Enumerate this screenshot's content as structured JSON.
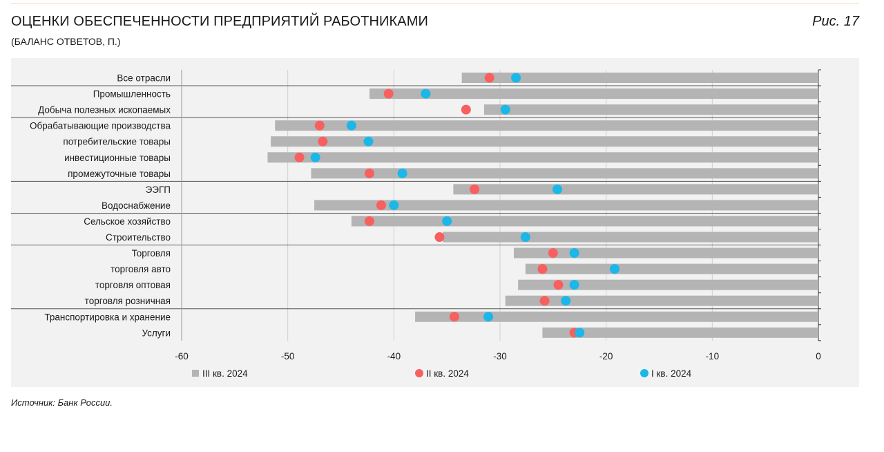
{
  "header": {
    "title": "ОЦЕНКИ ОБЕСПЕЧЕННОСТИ ПРЕДПРИЯТИЙ РАБОТНИКАМИ",
    "subtitle": "(БАЛАНС ОТВЕТОВ, П.)",
    "figure_label": "Рис. 17"
  },
  "footer": {
    "source": "Источник: Банк России."
  },
  "colors": {
    "q3": "#b4b4b4",
    "q2": "#f7605e",
    "q1": "#1bb7e8"
  },
  "chart_data": {
    "type": "bar",
    "orientation": "horizontal",
    "title": "ОЦЕНКИ ОБЕСПЕЧЕННОСТИ ПРЕДПРИЯТИЙ РАБОТНИКАМИ",
    "ylabel": "",
    "xlabel": "",
    "xlim": [
      -60,
      0
    ],
    "xticks": [
      -60,
      -50,
      -40,
      -30,
      -20,
      -10,
      0
    ],
    "categories": [
      "Все отрасли",
      "Промышленность",
      "Добыча полезных ископаемых",
      "Обрабатывающие производства",
      "потребительские товары",
      "инвестиционные товары",
      "промежуточные товары",
      "ЭЭГП",
      "Водоснабжение",
      "Сельское хозяйство",
      "Строительство",
      "Торговля",
      "торговля авто",
      "торговля оптовая",
      "торговля розничная",
      "Транспортировка и хранение",
      "Услуги"
    ],
    "group_separators_after": [
      0,
      2,
      6,
      8,
      10,
      14
    ],
    "series": [
      {
        "name": "III кв. 2024",
        "mark": "bar",
        "color_key": "q3",
        "values": [
          -33.6,
          -42.3,
          -31.5,
          -51.2,
          -51.6,
          -51.9,
          -47.8,
          -34.4,
          -47.5,
          -44,
          -35.4,
          -28.7,
          -27.6,
          -28.3,
          -29.5,
          -38,
          -26
        ]
      },
      {
        "name": "II кв. 2024",
        "mark": "dot",
        "color_key": "q2",
        "values": [
          -31,
          -40.5,
          -33.2,
          -47,
          -46.7,
          -48.9,
          -42.3,
          -32.4,
          -41.2,
          -42.3,
          -35.7,
          -25,
          -26,
          -24.5,
          -25.8,
          -34.3,
          -23
        ]
      },
      {
        "name": "I кв. 2024",
        "mark": "dot",
        "color_key": "q1",
        "values": [
          -28.5,
          -37,
          -29.5,
          -44,
          -42.4,
          -47.4,
          -39.2,
          -24.6,
          -40,
          -35,
          -27.6,
          -23,
          -19.2,
          -23,
          -23.8,
          -31.1,
          -22.5
        ]
      }
    ]
  }
}
